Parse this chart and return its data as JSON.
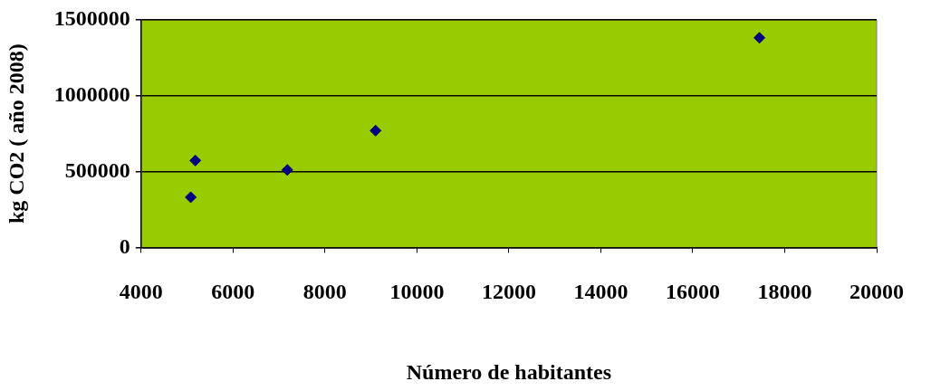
{
  "chart_data": {
    "type": "scatter",
    "xlabel": "Número de habitantes",
    "ylabel": "kg CO2 ( año 2008)",
    "x": [
      5080,
      5180,
      7180,
      9100,
      17450
    ],
    "series": [
      {
        "color": "#000080",
        "values": [
          331000,
          573000,
          511000,
          770000,
          1382000
        ]
      }
    ],
    "xlim": [
      4000,
      20000
    ],
    "xticks": [
      4000,
      6000,
      8000,
      10000,
      12000,
      14000,
      16000,
      18000,
      20000
    ],
    "ylim": [
      0,
      1500000
    ],
    "yticks": [
      0,
      500000,
      1000000,
      1500000
    ],
    "grid": "y",
    "legend": false,
    "marker": "diamond"
  }
}
